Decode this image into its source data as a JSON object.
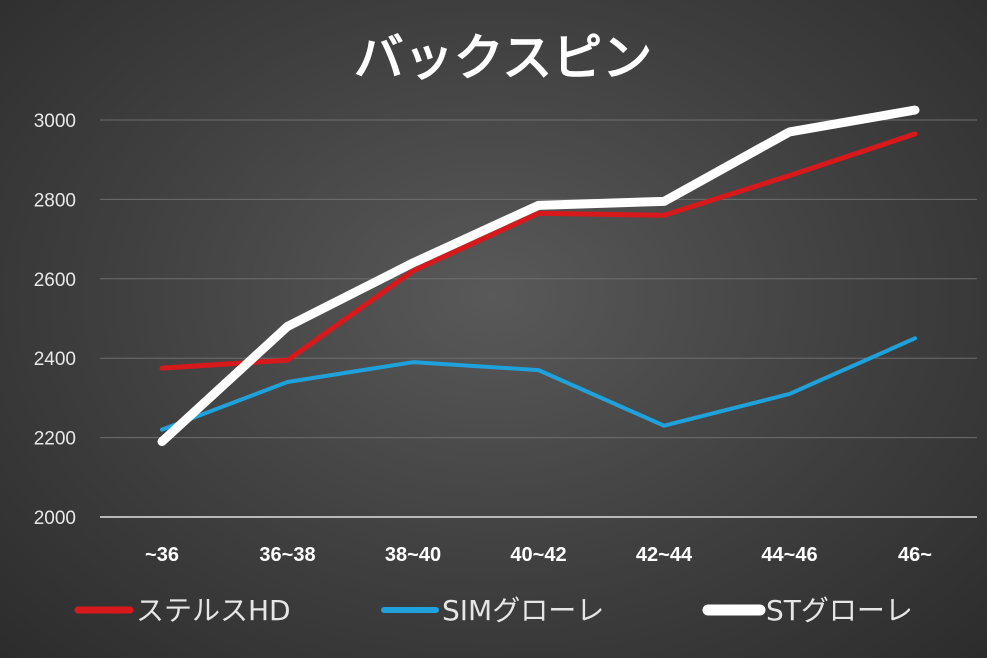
{
  "chart_data": {
    "type": "line",
    "title": "バックスピン",
    "xlabel": "",
    "ylabel": "",
    "categories": [
      "~36",
      "36~38",
      "38~40",
      "40~42",
      "42~44",
      "44~46",
      "46~"
    ],
    "ylim": [
      2000,
      3000
    ],
    "yticks": [
      2000,
      2200,
      2400,
      2600,
      2800,
      3000
    ],
    "grid": true,
    "legend": "bottom",
    "series": [
      {
        "name": "ステルスHD",
        "color": "#d7191c",
        "values": [
          2375,
          2395,
          2620,
          2765,
          2760,
          2860,
          2965
        ]
      },
      {
        "name": "SIMグローレ",
        "color": "#1fa2dc",
        "values": [
          2220,
          2340,
          2390,
          2370,
          2230,
          2310,
          2450
        ]
      },
      {
        "name": "STグローレ",
        "color": "#ffffff",
        "values": [
          2190,
          2480,
          2640,
          2785,
          2795,
          2970,
          3025
        ]
      }
    ]
  }
}
